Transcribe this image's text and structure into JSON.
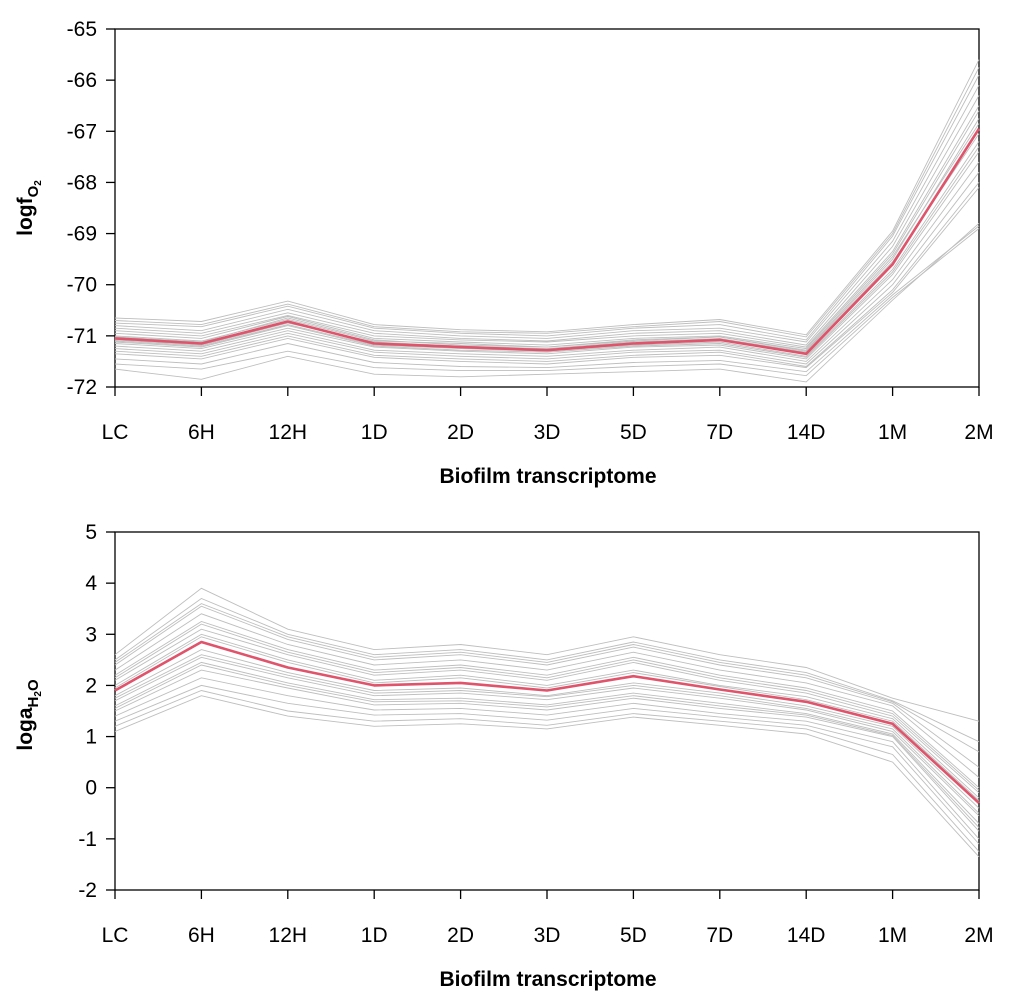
{
  "chart_data": [
    {
      "type": "line",
      "xlabel": "Biofilm transcriptome",
      "ylabel": "logf",
      "ylabel_sub": "O",
      "ylabel_subsub": "2",
      "categories": [
        "LC",
        "6H",
        "12H",
        "1D",
        "2D",
        "3D",
        "5D",
        "7D",
        "14D",
        "1M",
        "2M"
      ],
      "ylim": [
        -72,
        -65
      ],
      "yticks": [
        "-72",
        "-71",
        "-70",
        "-69",
        "-68",
        "-67",
        "-66",
        "-65"
      ],
      "grid": false,
      "highlight_color": "#DF536B",
      "background_color": "#BEBEBE",
      "series": [
        {
          "values": [
            -71.05,
            -71.15,
            -70.72,
            -71.15,
            -71.22,
            -71.28,
            -71.15,
            -71.08,
            -71.35,
            -69.6,
            -66.95
          ]
        }
      ],
      "background_series": [
        {
          "values": [
            -70.65,
            -70.72,
            -70.32,
            -70.78,
            -70.88,
            -70.92,
            -70.78,
            -70.68,
            -70.98,
            -68.95,
            -65.6
          ]
        },
        {
          "values": [
            -70.75,
            -70.82,
            -70.42,
            -70.85,
            -70.95,
            -71.0,
            -70.85,
            -70.78,
            -71.08,
            -69.05,
            -65.9
          ]
        },
        {
          "values": [
            -70.8,
            -70.9,
            -70.48,
            -70.9,
            -71.0,
            -71.05,
            -70.9,
            -70.85,
            -71.12,
            -69.15,
            -66.1
          ]
        },
        {
          "values": [
            -70.85,
            -70.95,
            -70.55,
            -70.95,
            -71.05,
            -71.1,
            -70.95,
            -70.9,
            -71.18,
            -69.25,
            -66.3
          ]
        },
        {
          "values": [
            -70.9,
            -71.0,
            -70.6,
            -71.0,
            -71.08,
            -71.12,
            -71.0,
            -70.95,
            -71.22,
            -69.35,
            -66.5
          ]
        },
        {
          "values": [
            -70.95,
            -71.05,
            -70.62,
            -71.05,
            -71.12,
            -71.18,
            -71.05,
            -71.0,
            -71.25,
            -69.4,
            -66.6
          ]
        },
        {
          "values": [
            -71.0,
            -71.1,
            -70.68,
            -71.1,
            -71.15,
            -71.22,
            -71.1,
            -71.02,
            -71.3,
            -69.5,
            -66.75
          ]
        },
        {
          "values": [
            -71.1,
            -71.2,
            -70.78,
            -71.18,
            -71.25,
            -71.3,
            -71.18,
            -71.12,
            -71.4,
            -69.7,
            -67.2
          ]
        },
        {
          "values": [
            -71.15,
            -71.25,
            -70.85,
            -71.22,
            -71.3,
            -71.35,
            -71.22,
            -71.18,
            -71.45,
            -69.8,
            -67.4
          ]
        },
        {
          "values": [
            -71.2,
            -71.3,
            -70.9,
            -71.28,
            -71.35,
            -71.4,
            -71.28,
            -71.22,
            -71.5,
            -69.9,
            -67.6
          ]
        },
        {
          "values": [
            -71.25,
            -71.35,
            -70.95,
            -71.32,
            -71.4,
            -71.45,
            -71.32,
            -71.28,
            -71.55,
            -70.0,
            -67.8
          ]
        },
        {
          "values": [
            -71.3,
            -71.4,
            -71.0,
            -71.38,
            -71.45,
            -71.5,
            -71.38,
            -71.32,
            -71.6,
            -70.1,
            -68.0
          ]
        },
        {
          "values": [
            -71.35,
            -71.45,
            -71.05,
            -71.42,
            -71.5,
            -71.55,
            -71.42,
            -71.38,
            -71.62,
            -70.15,
            -68.1
          ]
        },
        {
          "values": [
            -71.45,
            -71.55,
            -71.15,
            -71.52,
            -71.6,
            -71.62,
            -71.52,
            -71.48,
            -71.7,
            -70.2,
            -68.85
          ]
        },
        {
          "values": [
            -71.55,
            -71.65,
            -71.3,
            -71.62,
            -71.68,
            -71.68,
            -71.6,
            -71.55,
            -71.78,
            -70.25,
            -68.9
          ]
        },
        {
          "values": [
            -71.65,
            -71.85,
            -71.4,
            -71.75,
            -71.8,
            -71.75,
            -71.7,
            -71.65,
            -71.9,
            -70.3,
            -68.8
          ]
        },
        {
          "values": [
            -70.7,
            -70.78,
            -70.38,
            -70.82,
            -70.92,
            -70.95,
            -70.82,
            -70.72,
            -71.02,
            -69.0,
            -65.75
          ]
        },
        {
          "values": [
            -71.02,
            -71.12,
            -70.65,
            -71.08,
            -71.18,
            -71.22,
            -71.08,
            -71.02,
            -71.28,
            -69.45,
            -66.85
          ]
        },
        {
          "values": [
            -71.08,
            -71.18,
            -70.75,
            -71.12,
            -71.2,
            -71.25,
            -71.12,
            -71.05,
            -71.32,
            -69.55,
            -67.05
          ]
        },
        {
          "values": [
            -71.12,
            -71.22,
            -70.8,
            -71.2,
            -71.28,
            -71.32,
            -71.2,
            -71.15,
            -71.42,
            -69.75,
            -67.3
          ]
        }
      ]
    },
    {
      "type": "line",
      "xlabel": "Biofilm transcriptome",
      "ylabel": "loga",
      "ylabel_sub": "H",
      "ylabel_subsub": "2",
      "ylabel_sub_tail": "O",
      "categories": [
        "LC",
        "6H",
        "12H",
        "1D",
        "2D",
        "3D",
        "5D",
        "7D",
        "14D",
        "1M",
        "2M"
      ],
      "ylim": [
        -2,
        5
      ],
      "yticks": [
        "-2",
        "-1",
        "0",
        "1",
        "2",
        "3",
        "4",
        "5"
      ],
      "grid": false,
      "highlight_color": "#DF536B",
      "background_color": "#BEBEBE",
      "series": [
        {
          "values": [
            1.9,
            2.85,
            2.35,
            2.0,
            2.05,
            1.9,
            2.18,
            1.92,
            1.68,
            1.25,
            -0.3
          ]
        }
      ],
      "background_series": [
        {
          "values": [
            2.6,
            3.9,
            3.1,
            2.7,
            2.8,
            2.6,
            2.95,
            2.6,
            2.35,
            1.75,
            1.3
          ]
        },
        {
          "values": [
            2.5,
            3.7,
            3.0,
            2.6,
            2.7,
            2.5,
            2.85,
            2.5,
            2.25,
            1.7,
            0.9
          ]
        },
        {
          "values": [
            2.4,
            3.55,
            2.9,
            2.5,
            2.6,
            2.4,
            2.75,
            2.4,
            2.15,
            1.65,
            0.4
          ]
        },
        {
          "values": [
            2.3,
            3.4,
            2.8,
            2.4,
            2.5,
            2.3,
            2.65,
            2.3,
            2.05,
            1.6,
            0.2
          ]
        },
        {
          "values": [
            2.2,
            3.25,
            2.7,
            2.3,
            2.4,
            2.2,
            2.55,
            2.2,
            1.95,
            1.5,
            0.0
          ]
        },
        {
          "values": [
            2.1,
            3.1,
            2.6,
            2.2,
            2.3,
            2.1,
            2.45,
            2.1,
            1.85,
            1.4,
            -0.1
          ]
        },
        {
          "values": [
            2.0,
            3.0,
            2.5,
            2.1,
            2.2,
            2.0,
            2.3,
            2.0,
            1.78,
            1.35,
            -0.2
          ]
        },
        {
          "values": [
            1.8,
            2.7,
            2.25,
            1.9,
            1.95,
            1.8,
            2.05,
            1.85,
            1.6,
            1.2,
            -0.4
          ]
        },
        {
          "values": [
            1.7,
            2.55,
            2.15,
            1.8,
            1.85,
            1.72,
            1.95,
            1.75,
            1.52,
            1.1,
            -0.55
          ]
        },
        {
          "values": [
            1.6,
            2.45,
            2.05,
            1.72,
            1.75,
            1.62,
            1.85,
            1.65,
            1.45,
            1.05,
            -0.7
          ]
        },
        {
          "values": [
            1.5,
            2.3,
            1.95,
            1.62,
            1.65,
            1.52,
            1.75,
            1.55,
            1.38,
            1.0,
            -0.85
          ]
        },
        {
          "values": [
            1.4,
            2.15,
            1.8,
            1.52,
            1.55,
            1.42,
            1.65,
            1.45,
            1.3,
            0.9,
            -1.0
          ]
        },
        {
          "values": [
            1.3,
            2.0,
            1.65,
            1.42,
            1.45,
            1.32,
            1.55,
            1.38,
            1.22,
            0.8,
            -1.1
          ]
        },
        {
          "values": [
            1.2,
            1.9,
            1.5,
            1.3,
            1.35,
            1.22,
            1.45,
            1.3,
            1.15,
            0.65,
            -1.25
          ]
        },
        {
          "values": [
            1.1,
            1.8,
            1.4,
            1.2,
            1.25,
            1.15,
            1.38,
            1.22,
            1.05,
            0.5,
            -1.35
          ]
        },
        {
          "values": [
            2.45,
            3.6,
            2.95,
            2.55,
            2.65,
            2.45,
            2.8,
            2.45,
            2.2,
            1.68,
            0.7
          ]
        },
        {
          "values": [
            2.15,
            3.2,
            2.65,
            2.25,
            2.35,
            2.15,
            2.5,
            2.15,
            1.9,
            1.45,
            -0.05
          ]
        },
        {
          "values": [
            1.95,
            2.95,
            2.45,
            2.05,
            2.15,
            1.95,
            2.25,
            1.98,
            1.72,
            1.3,
            -0.25
          ]
        },
        {
          "values": [
            1.75,
            2.6,
            2.2,
            1.85,
            1.9,
            1.78,
            2.0,
            1.8,
            1.55,
            1.15,
            -0.5
          ]
        },
        {
          "values": [
            1.55,
            2.4,
            2.0,
            1.68,
            1.7,
            1.58,
            1.8,
            1.6,
            1.42,
            1.02,
            -0.78
          ]
        }
      ]
    }
  ]
}
